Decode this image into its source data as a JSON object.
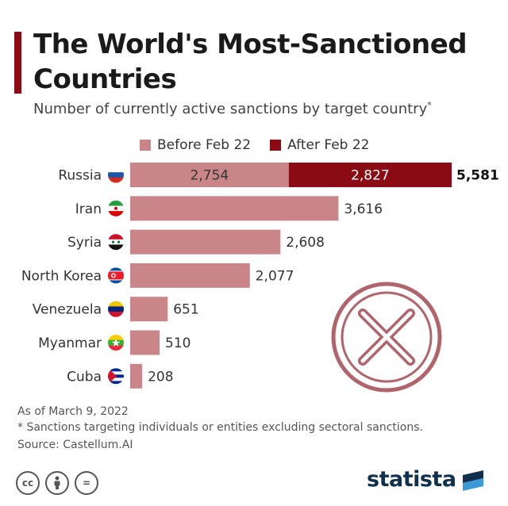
{
  "header": {
    "title": "The World's Most-Sanctioned Countries",
    "subtitle": "Number of currently active sanctions by target country",
    "subtitle_mark": "*"
  },
  "legend": {
    "before_label": "Before Feb 22",
    "after_label": "After Feb 22"
  },
  "colors": {
    "before": "#c98588",
    "after": "#8b0b14",
    "accent": "#8b0b14",
    "stamp": "#b0646c"
  },
  "chart_data": {
    "type": "bar",
    "orientation": "horizontal",
    "stacked": true,
    "categories": [
      "Russia",
      "Iran",
      "Syria",
      "North Korea",
      "Venezuela",
      "Myanmar",
      "Cuba"
    ],
    "series": [
      {
        "name": "Before Feb 22",
        "values": [
          2754,
          3616,
          2608,
          2077,
          651,
          510,
          208
        ]
      },
      {
        "name": "After Feb 22",
        "values": [
          2827,
          0,
          0,
          0,
          0,
          0,
          0
        ]
      }
    ],
    "totals": [
      5581,
      3616,
      2608,
      2077,
      651,
      510,
      208
    ],
    "segment_labels": {
      "before": [
        "2,754",
        "",
        "",
        "",
        "",
        "",
        ""
      ],
      "after": [
        "2,827",
        "",
        "",
        "",
        "",
        "",
        ""
      ]
    },
    "total_labels": [
      "5,581",
      "3,616",
      "2,608",
      "2,077",
      "651",
      "510",
      "208"
    ],
    "flags": [
      "russia-flag",
      "iran-flag",
      "syria-flag",
      "north-korea-flag",
      "venezuela-flag",
      "myanmar-flag",
      "cuba-flag"
    ],
    "xlim": [
      0,
      5581
    ],
    "title": "The World's Most-Sanctioned Countries",
    "xlabel": "",
    "ylabel": ""
  },
  "footer": {
    "date_note": "As of March 9, 2022",
    "footnote": "* Sanctions targeting individuals or entities excluding sectoral sanctions.",
    "source": "Source: Castellum.AI",
    "brand": "statista"
  },
  "license_icons": [
    {
      "name": "cc-icon",
      "glyph": "cc"
    },
    {
      "name": "by-icon",
      "glyph": ""
    },
    {
      "name": "nd-icon",
      "glyph": "="
    }
  ]
}
